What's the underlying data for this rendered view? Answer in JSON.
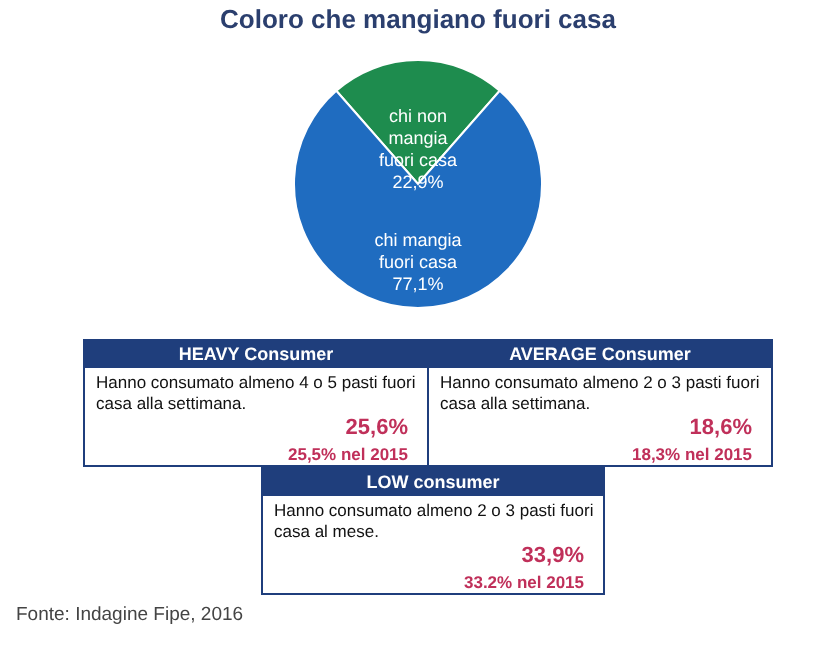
{
  "chart_data": [
    {
      "type": "pie",
      "title": "Coloro che mangiano fuori casa",
      "categories": [
        "chi non mangia fuori casa",
        "chi mangia fuori casa"
      ],
      "values": [
        22.9,
        77.1
      ],
      "value_labels": [
        "22,9%",
        "77,1%"
      ],
      "colors": [
        "#1e8c4e",
        "#1f6cc0"
      ],
      "annotations": [
        "Fonte: Indagine Fipe, 2016"
      ]
    },
    {
      "type": "other",
      "title": "HEAVY Consumer",
      "annotations": [
        "Hanno consumato almeno 4 o 5 pasti fuori casa alla settimana.",
        "25,6%",
        "25,5% nel 2015"
      ]
    },
    {
      "type": "other",
      "title": "AVERAGE Consumer",
      "annotations": [
        "Hanno consumato almeno 2 o 3 pasti fuori casa alla settimana.",
        "18,6%",
        "18,3% nel 2015"
      ]
    },
    {
      "type": "other",
      "title": "LOW consumer",
      "annotations": [
        "Hanno consumato almeno 2 o 3 pasti fuori casa al mese.",
        "33,9%",
        "33.2% nel 2015"
      ]
    }
  ]
}
